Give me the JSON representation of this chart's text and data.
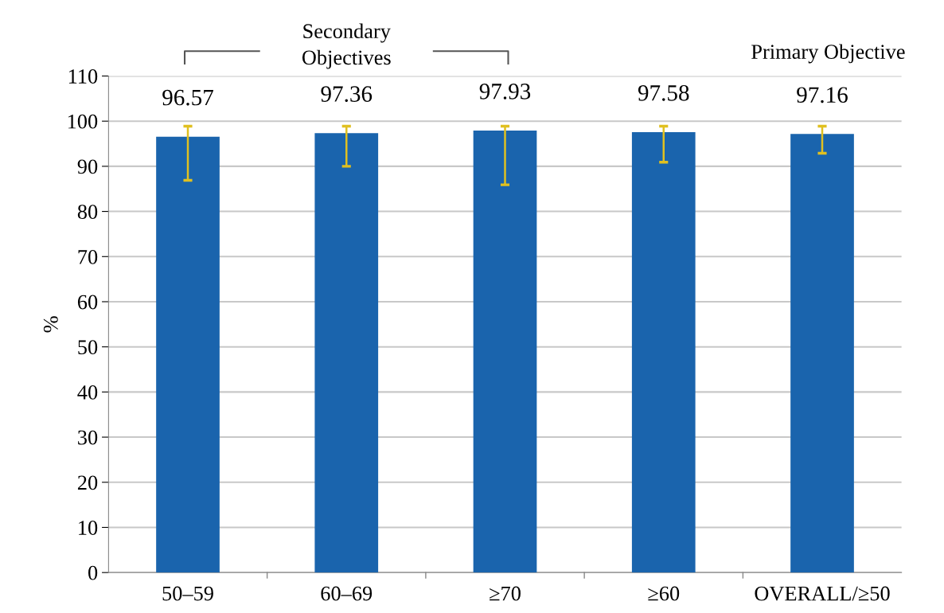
{
  "chart_data": {
    "type": "bar",
    "categories": [
      "50–59",
      "60–69",
      "≥70",
      "≥60",
      "OVERALL/≥50"
    ],
    "values": [
      96.57,
      97.36,
      97.93,
      97.58,
      97.16
    ],
    "errors": [
      [
        86.9,
        98.9
      ],
      [
        90.0,
        98.9
      ],
      [
        85.9,
        98.9
      ],
      [
        90.9,
        98.9
      ],
      [
        92.9,
        98.9
      ]
    ],
    "color": "#1a64ad",
    "ylabel": "%",
    "ylim": [
      0,
      110
    ],
    "yticks": [
      0,
      10,
      20,
      30,
      40,
      50,
      60,
      70,
      80,
      90,
      100,
      110
    ],
    "grid": "y",
    "data_labels": true,
    "annotations": [
      "Secondary\nObjectives",
      "Primary Objective"
    ]
  }
}
